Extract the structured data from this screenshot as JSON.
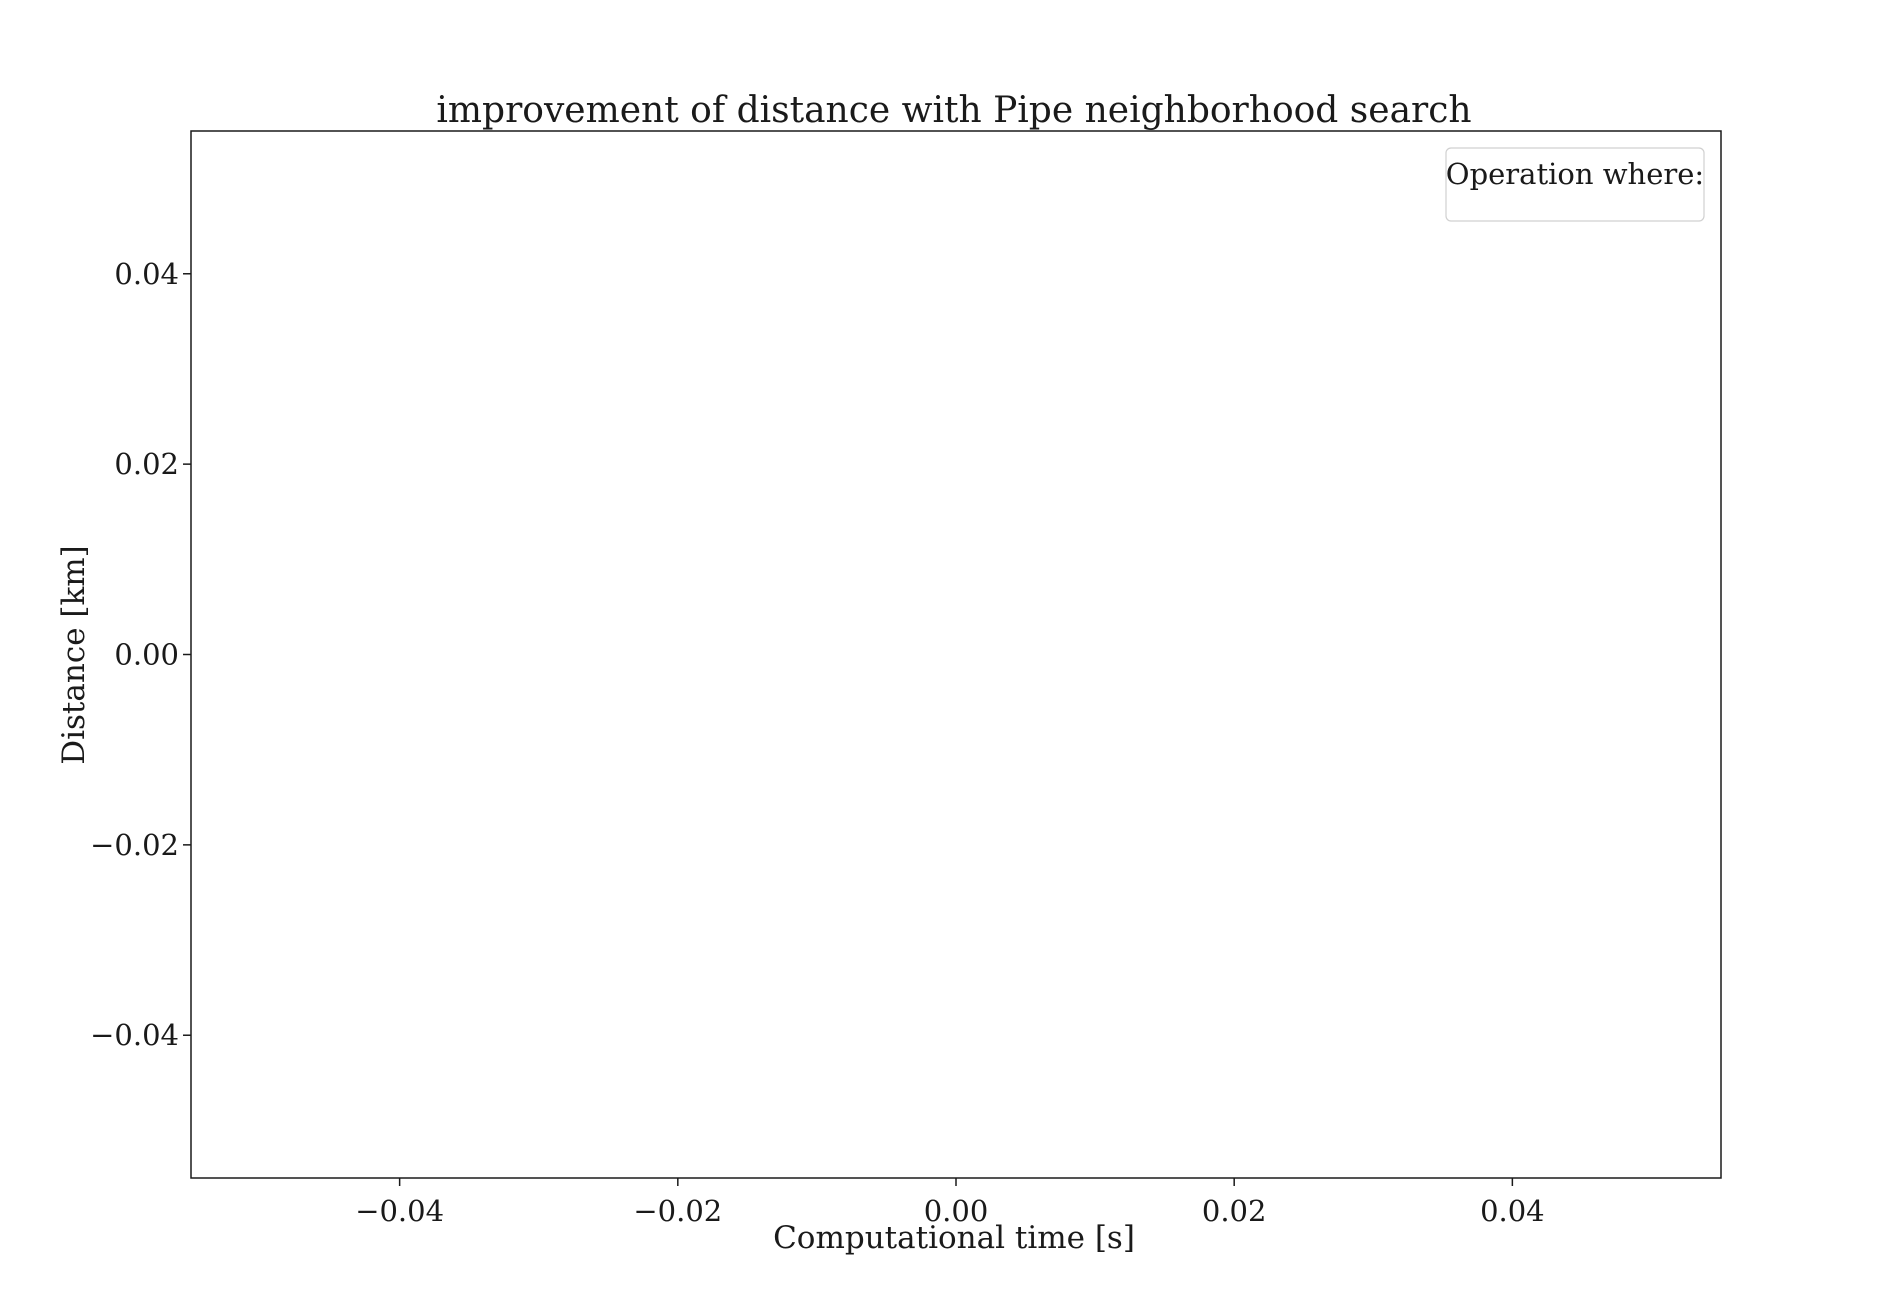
{
  "chart_data": {
    "type": "scatter",
    "title": "improvement of distance with Pipe neighborhood search",
    "xlabel": "Computational time [s]",
    "ylabel": "Distance [km]",
    "xlim": [
      -0.055,
      0.055
    ],
    "ylim": [
      -0.055,
      0.055
    ],
    "xticks": [
      -0.04,
      -0.02,
      0.0,
      0.02,
      0.04
    ],
    "yticks": [
      -0.04,
      -0.02,
      0.0,
      0.02,
      0.04
    ],
    "xtick_labels": [
      "−0.04",
      "−0.02",
      "0.00",
      "0.02",
      "0.04"
    ],
    "ytick_labels": [
      "−0.04",
      "−0.02",
      "0.00",
      "0.02",
      "0.04"
    ],
    "grid": false,
    "legend": {
      "title": "Operation where:",
      "placement": "top-right",
      "entries": []
    },
    "series": []
  }
}
